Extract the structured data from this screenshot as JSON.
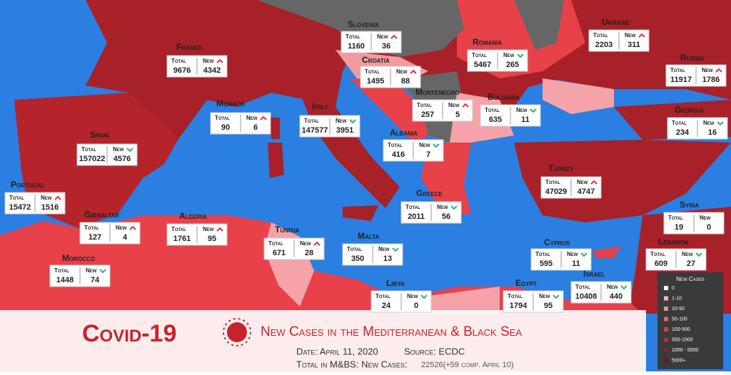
{
  "title": "Covid-19",
  "subtitle": "New Cases in the Mediterranean & Black Sea",
  "date": "Date: April 11, 2020",
  "source": "Source: ECDC",
  "total_label": "Total in M&BS: New Cases:",
  "total_value": "22526(+59 comp. April 10)",
  "labels": {
    "total": "Total",
    "new": "New"
  },
  "legend": {
    "title": "New Cases",
    "items": [
      "0",
      "1-10",
      "10-50",
      "50-100",
      "100-500",
      "500-1000",
      "1000 - 5000",
      "5000+"
    ]
  },
  "countries": [
    {
      "name": "France",
      "total": 9676,
      "new": 4342,
      "trend": "up"
    },
    {
      "name": "Slovenia",
      "total": 1160,
      "new": 36,
      "trend": "up"
    },
    {
      "name": "Croatia",
      "total": 1495,
      "new": 88,
      "trend": "up"
    },
    {
      "name": "Romania",
      "total": 5467,
      "new": 265,
      "trend": "down"
    },
    {
      "name": "Ukraine",
      "total": 2203,
      "new": 311,
      "trend": "up"
    },
    {
      "name": "Russia",
      "total": 11917,
      "new": 1786,
      "trend": "up"
    },
    {
      "name": "Monaco",
      "total": 90,
      "new": 6,
      "trend": "up"
    },
    {
      "name": "Italy",
      "total": 147577,
      "new": 3951,
      "trend": "down"
    },
    {
      "name": "Montenegro",
      "total": 257,
      "new": 5,
      "trend": "up"
    },
    {
      "name": "Bulgaria",
      "total": 635,
      "new": 11,
      "trend": "down"
    },
    {
      "name": "Georgia",
      "total": 234,
      "new": 16,
      "trend": "down"
    },
    {
      "name": "Spain",
      "total": 157022,
      "new": 4576,
      "trend": "down"
    },
    {
      "name": "Albania",
      "total": 416,
      "new": 7,
      "trend": "down"
    },
    {
      "name": "Turkey",
      "total": 47029,
      "new": 4747,
      "trend": "up"
    },
    {
      "name": "Portugal",
      "total": 15472,
      "new": 1516,
      "trend": "up"
    },
    {
      "name": "Greece",
      "total": 2011,
      "new": 56,
      "trend": "down"
    },
    {
      "name": "Syria",
      "total": 19,
      "new": 0
    },
    {
      "name": "Gibraltar",
      "total": 127,
      "new": 4,
      "trend": "up"
    },
    {
      "name": "Algeria",
      "total": 1761,
      "new": 95,
      "trend": "up"
    },
    {
      "name": "Tunisia",
      "total": 671,
      "new": 28,
      "trend": "up"
    },
    {
      "name": "Malta",
      "total": 350,
      "new": 13,
      "trend": "down"
    },
    {
      "name": "Cyprus",
      "total": 595,
      "new": 11,
      "trend": "down"
    },
    {
      "name": "Lebanon",
      "total": 609,
      "new": 27,
      "trend": "down"
    },
    {
      "name": "Morocco",
      "total": 1448,
      "new": 74,
      "trend": "down"
    },
    {
      "name": "Israel",
      "total": 10408,
      "new": 440,
      "trend": "down"
    },
    {
      "name": "Libya",
      "total": 24,
      "new": 0,
      "trend": "down"
    },
    {
      "name": "Egypt",
      "total": 1794,
      "new": 95,
      "trend": "down"
    }
  ]
}
